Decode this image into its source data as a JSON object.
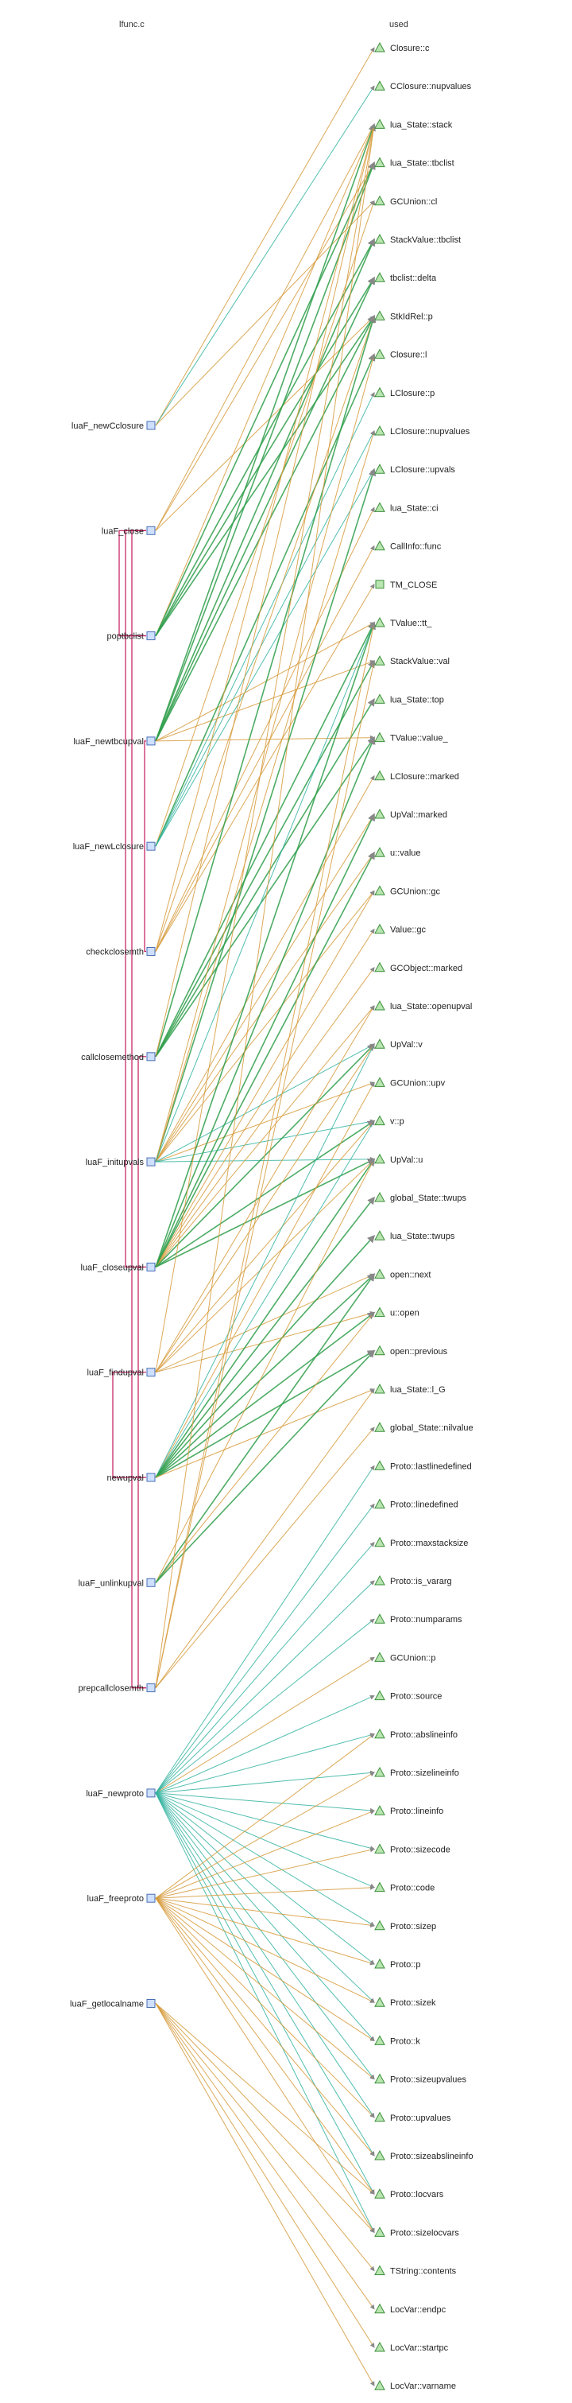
{
  "header": {
    "left_title": "lfunc.c",
    "right_title": "used"
  },
  "colors": {
    "read": "#d69a3a",
    "write": "#33b3a0",
    "readwrite": "#2e9e4a",
    "call": "#c2185b"
  },
  "functions": [
    {
      "name": "luaF_newCclosure",
      "icon": "function-box-icon"
    },
    {
      "name": "luaF_close",
      "icon": "function-box-icon"
    },
    {
      "name": "poptbclist",
      "icon": "function-box-icon"
    },
    {
      "name": "luaF_newtbcupval",
      "icon": "function-box-icon"
    },
    {
      "name": "luaF_newLclosure",
      "icon": "function-box-icon"
    },
    {
      "name": "checkclosemth",
      "icon": "function-box-icon"
    },
    {
      "name": "callclosemethod",
      "icon": "function-box-icon"
    },
    {
      "name": "luaF_initupvals",
      "icon": "function-box-icon"
    },
    {
      "name": "luaF_closeupval",
      "icon": "function-box-icon"
    },
    {
      "name": "luaF_findupval",
      "icon": "function-box-icon"
    },
    {
      "name": "newupval",
      "icon": "function-box-icon"
    },
    {
      "name": "luaF_unlinkupval",
      "icon": "function-box-icon"
    },
    {
      "name": "prepcallclosemth",
      "icon": "function-box-icon"
    },
    {
      "name": "luaF_newproto",
      "icon": "function-box-icon"
    },
    {
      "name": "luaF_freeproto",
      "icon": "function-box-icon"
    },
    {
      "name": "luaF_getlocalname",
      "icon": "function-box-icon"
    }
  ],
  "used": [
    {
      "name": "Closure::c",
      "icon": "triangle-icon"
    },
    {
      "name": "CClosure::nupvalues",
      "icon": "triangle-icon"
    },
    {
      "name": "lua_State::stack",
      "icon": "triangle-icon"
    },
    {
      "name": "lua_State::tbclist",
      "icon": "triangle-icon"
    },
    {
      "name": "GCUnion::cl",
      "icon": "triangle-icon"
    },
    {
      "name": "StackValue::tbclist",
      "icon": "triangle-icon"
    },
    {
      "name": "tbclist::delta",
      "icon": "triangle-icon"
    },
    {
      "name": "StkIdRel::p",
      "icon": "triangle-icon"
    },
    {
      "name": "Closure::l",
      "icon": "triangle-icon"
    },
    {
      "name": "LClosure::p",
      "icon": "triangle-icon"
    },
    {
      "name": "LClosure::nupvalues",
      "icon": "triangle-icon"
    },
    {
      "name": "LClosure::upvals",
      "icon": "triangle-icon"
    },
    {
      "name": "lua_State::ci",
      "icon": "triangle-icon"
    },
    {
      "name": "CallInfo::func",
      "icon": "triangle-icon"
    },
    {
      "name": "TM_CLOSE",
      "icon": "square-icon"
    },
    {
      "name": "TValue::tt_",
      "icon": "triangle-icon"
    },
    {
      "name": "StackValue::val",
      "icon": "triangle-icon"
    },
    {
      "name": "lua_State::top",
      "icon": "triangle-icon"
    },
    {
      "name": "TValue::value_",
      "icon": "triangle-icon"
    },
    {
      "name": "LClosure::marked",
      "icon": "triangle-icon"
    },
    {
      "name": "UpVal::marked",
      "icon": "triangle-icon"
    },
    {
      "name": "u::value",
      "icon": "triangle-icon"
    },
    {
      "name": "GCUnion::gc",
      "icon": "triangle-icon"
    },
    {
      "name": "Value::gc",
      "icon": "triangle-icon"
    },
    {
      "name": "GCObject::marked",
      "icon": "triangle-icon"
    },
    {
      "name": "lua_State::openupval",
      "icon": "triangle-icon"
    },
    {
      "name": "UpVal::v",
      "icon": "triangle-icon"
    },
    {
      "name": "GCUnion::upv",
      "icon": "triangle-icon"
    },
    {
      "name": "v::p",
      "icon": "triangle-icon"
    },
    {
      "name": "UpVal::u",
      "icon": "triangle-icon"
    },
    {
      "name": "global_State::twups",
      "icon": "triangle-icon"
    },
    {
      "name": "lua_State::twups",
      "icon": "triangle-icon"
    },
    {
      "name": "open::next",
      "icon": "triangle-icon"
    },
    {
      "name": "u::open",
      "icon": "triangle-icon"
    },
    {
      "name": "open::previous",
      "icon": "triangle-icon"
    },
    {
      "name": "lua_State::l_G",
      "icon": "triangle-icon"
    },
    {
      "name": "global_State::nilvalue",
      "icon": "triangle-icon"
    },
    {
      "name": "Proto::lastlinedefined",
      "icon": "triangle-icon"
    },
    {
      "name": "Proto::linedefined",
      "icon": "triangle-icon"
    },
    {
      "name": "Proto::maxstacksize",
      "icon": "triangle-icon"
    },
    {
      "name": "Proto::is_vararg",
      "icon": "triangle-icon"
    },
    {
      "name": "Proto::numparams",
      "icon": "triangle-icon"
    },
    {
      "name": "GCUnion::p",
      "icon": "triangle-icon"
    },
    {
      "name": "Proto::source",
      "icon": "triangle-icon"
    },
    {
      "name": "Proto::abslineinfo",
      "icon": "triangle-icon"
    },
    {
      "name": "Proto::sizelineinfo",
      "icon": "triangle-icon"
    },
    {
      "name": "Proto::lineinfo",
      "icon": "triangle-icon"
    },
    {
      "name": "Proto::sizecode",
      "icon": "triangle-icon"
    },
    {
      "name": "Proto::code",
      "icon": "triangle-icon"
    },
    {
      "name": "Proto::sizep",
      "icon": "triangle-icon"
    },
    {
      "name": "Proto::p",
      "icon": "triangle-icon"
    },
    {
      "name": "Proto::sizek",
      "icon": "triangle-icon"
    },
    {
      "name": "Proto::k",
      "icon": "triangle-icon"
    },
    {
      "name": "Proto::sizeupvalues",
      "icon": "triangle-icon"
    },
    {
      "name": "Proto::upvalues",
      "icon": "triangle-icon"
    },
    {
      "name": "Proto::sizeabslineinfo",
      "icon": "triangle-icon"
    },
    {
      "name": "Proto::locvars",
      "icon": "triangle-icon"
    },
    {
      "name": "Proto::sizelocvars",
      "icon": "triangle-icon"
    },
    {
      "name": "TString::contents",
      "icon": "triangle-icon"
    },
    {
      "name": "LocVar::endpc",
      "icon": "triangle-icon"
    },
    {
      "name": "LocVar::startpc",
      "icon": "triangle-icon"
    },
    {
      "name": "LocVar::varname",
      "icon": "triangle-icon"
    }
  ],
  "edges": [
    {
      "from": "luaF_newCclosure",
      "to": "Closure::c",
      "kind": "read"
    },
    {
      "from": "luaF_newCclosure",
      "to": "CClosure::nupvalues",
      "kind": "write"
    },
    {
      "from": "luaF_newCclosure",
      "to": "GCUnion::cl",
      "kind": "read"
    },
    {
      "from": "luaF_close",
      "to": "lua_State::stack",
      "kind": "read"
    },
    {
      "from": "luaF_close",
      "to": "lua_State::tbclist",
      "kind": "read"
    },
    {
      "from": "luaF_close",
      "to": "StkIdRel::p",
      "kind": "read"
    },
    {
      "from": "poptbclist",
      "to": "lua_State::stack",
      "kind": "read"
    },
    {
      "from": "poptbclist",
      "to": "lua_State::tbclist",
      "kind": "readwrite"
    },
    {
      "from": "poptbclist",
      "to": "StackValue::tbclist",
      "kind": "readwrite"
    },
    {
      "from": "poptbclist",
      "to": "tbclist::delta",
      "kind": "readwrite"
    },
    {
      "from": "poptbclist",
      "to": "StkIdRel::p",
      "kind": "readwrite"
    },
    {
      "from": "luaF_newtbcupval",
      "to": "lua_State::stack",
      "kind": "readwrite"
    },
    {
      "from": "luaF_newtbcupval",
      "to": "lua_State::tbclist",
      "kind": "readwrite"
    },
    {
      "from": "luaF_newtbcupval",
      "to": "StackValue::tbclist",
      "kind": "readwrite"
    },
    {
      "from": "luaF_newtbcupval",
      "to": "tbclist::delta",
      "kind": "readwrite"
    },
    {
      "from": "luaF_newtbcupval",
      "to": "StkIdRel::p",
      "kind": "readwrite"
    },
    {
      "from": "luaF_newtbcupval",
      "to": "TValue::tt_",
      "kind": "read"
    },
    {
      "from": "luaF_newtbcupval",
      "to": "StackValue::val",
      "kind": "read"
    },
    {
      "from": "luaF_newtbcupval",
      "to": "TValue::value_",
      "kind": "read"
    },
    {
      "from": "luaF_newLclosure",
      "to": "GCUnion::cl",
      "kind": "read"
    },
    {
      "from": "luaF_newLclosure",
      "to": "Closure::l",
      "kind": "readwrite"
    },
    {
      "from": "luaF_newLclosure",
      "to": "LClosure::p",
      "kind": "write"
    },
    {
      "from": "luaF_newLclosure",
      "to": "LClosure::nupvalues",
      "kind": "write"
    },
    {
      "from": "luaF_newLclosure",
      "to": "LClosure::upvals",
      "kind": "write"
    },
    {
      "from": "checkclosemth",
      "to": "lua_State::stack",
      "kind": "read"
    },
    {
      "from": "checkclosemth",
      "to": "lua_State::ci",
      "kind": "read"
    },
    {
      "from": "checkclosemth",
      "to": "CallInfo::func",
      "kind": "read"
    },
    {
      "from": "checkclosemth",
      "to": "TM_CLOSE",
      "kind": "read"
    },
    {
      "from": "checkclosemth",
      "to": "StkIdRel::p",
      "kind": "read"
    },
    {
      "from": "callclosemethod",
      "to": "StkIdRel::p",
      "kind": "readwrite"
    },
    {
      "from": "callclosemethod",
      "to": "TValue::tt_",
      "kind": "readwrite"
    },
    {
      "from": "callclosemethod",
      "to": "StackValue::val",
      "kind": "readwrite"
    },
    {
      "from": "callclosemethod",
      "to": "lua_State::top",
      "kind": "readwrite"
    },
    {
      "from": "callclosemethod",
      "to": "TValue::value_",
      "kind": "readwrite"
    },
    {
      "from": "callclosemethod",
      "to": "lua_State::stack",
      "kind": "read"
    },
    {
      "from": "luaF_initupvals",
      "to": "Closure::l",
      "kind": "read"
    },
    {
      "from": "luaF_initupvals",
      "to": "LClosure::upvals",
      "kind": "readwrite"
    },
    {
      "from": "luaF_initupvals",
      "to": "LClosure::nupvalues",
      "kind": "read"
    },
    {
      "from": "luaF_initupvals",
      "to": "LClosure::marked",
      "kind": "read"
    },
    {
      "from": "luaF_initupvals",
      "to": "UpVal::marked",
      "kind": "read"
    },
    {
      "from": "luaF_initupvals",
      "to": "u::value",
      "kind": "read"
    },
    {
      "from": "luaF_initupvals",
      "to": "GCUnion::upv",
      "kind": "read"
    },
    {
      "from": "luaF_initupvals",
      "to": "UpVal::v",
      "kind": "write"
    },
    {
      "from": "luaF_initupvals",
      "to": "v::p",
      "kind": "write"
    },
    {
      "from": "luaF_initupvals",
      "to": "UpVal::u",
      "kind": "write"
    },
    {
      "from": "luaF_initupvals",
      "to": "GCUnion::gc",
      "kind": "read"
    },
    {
      "from": "luaF_initupvals",
      "to": "TValue::tt_",
      "kind": "write"
    },
    {
      "from": "luaF_closeupval",
      "to": "lua_State::openupval",
      "kind": "read"
    },
    {
      "from": "luaF_closeupval",
      "to": "UpVal::v",
      "kind": "readwrite"
    },
    {
      "from": "luaF_closeupval",
      "to": "v::p",
      "kind": "readwrite"
    },
    {
      "from": "luaF_closeupval",
      "to": "UpVal::u",
      "kind": "readwrite"
    },
    {
      "from": "luaF_closeupval",
      "to": "u::value",
      "kind": "readwrite"
    },
    {
      "from": "luaF_closeupval",
      "to": "TValue::tt_",
      "kind": "readwrite"
    },
    {
      "from": "luaF_closeupval",
      "to": "TValue::value_",
      "kind": "readwrite"
    },
    {
      "from": "luaF_closeupval",
      "to": "GCUnion::gc",
      "kind": "read"
    },
    {
      "from": "luaF_closeupval",
      "to": "Value::gc",
      "kind": "read"
    },
    {
      "from": "luaF_closeupval",
      "to": "GCObject::marked",
      "kind": "read"
    },
    {
      "from": "luaF_closeupval",
      "to": "UpVal::marked",
      "kind": "readwrite"
    },
    {
      "from": "luaF_findupval",
      "to": "lua_State::openupval",
      "kind": "read"
    },
    {
      "from": "luaF_findupval",
      "to": "UpVal::v",
      "kind": "read"
    },
    {
      "from": "luaF_findupval",
      "to": "v::p",
      "kind": "read"
    },
    {
      "from": "luaF_findupval",
      "to": "UpVal::u",
      "kind": "read"
    },
    {
      "from": "luaF_findupval",
      "to": "open::next",
      "kind": "read"
    },
    {
      "from": "luaF_findupval",
      "to": "u::open",
      "kind": "read"
    },
    {
      "from": "luaF_findupval",
      "to": "lua_State::stack",
      "kind": "read"
    },
    {
      "from": "newupval",
      "to": "GCUnion::upv",
      "kind": "read"
    },
    {
      "from": "newupval",
      "to": "UpVal::v",
      "kind": "write"
    },
    {
      "from": "newupval",
      "to": "v::p",
      "kind": "write"
    },
    {
      "from": "newupval",
      "to": "UpVal::u",
      "kind": "readwrite"
    },
    {
      "from": "newupval",
      "to": "open::next",
      "kind": "readwrite"
    },
    {
      "from": "newupval",
      "to": "u::open",
      "kind": "readwrite"
    },
    {
      "from": "newupval",
      "to": "open::previous",
      "kind": "readwrite"
    },
    {
      "from": "newupval",
      "to": "global_State::twups",
      "kind": "readwrite"
    },
    {
      "from": "newupval",
      "to": "lua_State::twups",
      "kind": "readwrite"
    },
    {
      "from": "newupval",
      "to": "lua_State::l_G",
      "kind": "read"
    },
    {
      "from": "luaF_unlinkupval",
      "to": "UpVal::u",
      "kind": "read"
    },
    {
      "from": "luaF_unlinkupval",
      "to": "u::open",
      "kind": "read"
    },
    {
      "from": "luaF_unlinkupval",
      "to": "open::next",
      "kind": "readwrite"
    },
    {
      "from": "luaF_unlinkupval",
      "to": "open::previous",
      "kind": "readwrite"
    },
    {
      "from": "prepcallclosemth",
      "to": "lua_State::l_G",
      "kind": "read"
    },
    {
      "from": "prepcallclosemth",
      "to": "global_State::nilvalue",
      "kind": "read"
    },
    {
      "from": "prepcallclosemth",
      "to": "TValue::tt_",
      "kind": "read"
    },
    {
      "from": "prepcallclosemth",
      "to": "StackValue::val",
      "kind": "read"
    },
    {
      "from": "prepcallclosemth",
      "to": "lua_State::stack",
      "kind": "read"
    },
    {
      "from": "luaF_newproto",
      "to": "GCUnion::p",
      "kind": "read"
    },
    {
      "from": "luaF_newproto",
      "to": "Proto::lastlinedefined",
      "kind": "write"
    },
    {
      "from": "luaF_newproto",
      "to": "Proto::linedefined",
      "kind": "write"
    },
    {
      "from": "luaF_newproto",
      "to": "Proto::maxstacksize",
      "kind": "write"
    },
    {
      "from": "luaF_newproto",
      "to": "Proto::is_vararg",
      "kind": "write"
    },
    {
      "from": "luaF_newproto",
      "to": "Proto::numparams",
      "kind": "write"
    },
    {
      "from": "luaF_newproto",
      "to": "Proto::source",
      "kind": "write"
    },
    {
      "from": "luaF_newproto",
      "to": "Proto::abslineinfo",
      "kind": "write"
    },
    {
      "from": "luaF_newproto",
      "to": "Proto::sizelineinfo",
      "kind": "write"
    },
    {
      "from": "luaF_newproto",
      "to": "Proto::lineinfo",
      "kind": "write"
    },
    {
      "from": "luaF_newproto",
      "to": "Proto::sizecode",
      "kind": "write"
    },
    {
      "from": "luaF_newproto",
      "to": "Proto::code",
      "kind": "write"
    },
    {
      "from": "luaF_newproto",
      "to": "Proto::sizep",
      "kind": "write"
    },
    {
      "from": "luaF_newproto",
      "to": "Proto::p",
      "kind": "write"
    },
    {
      "from": "luaF_newproto",
      "to": "Proto::sizek",
      "kind": "write"
    },
    {
      "from": "luaF_newproto",
      "to": "Proto::k",
      "kind": "write"
    },
    {
      "from": "luaF_newproto",
      "to": "Proto::sizeupvalues",
      "kind": "write"
    },
    {
      "from": "luaF_newproto",
      "to": "Proto::upvalues",
      "kind": "write"
    },
    {
      "from": "luaF_newproto",
      "to": "Proto::sizeabslineinfo",
      "kind": "write"
    },
    {
      "from": "luaF_newproto",
      "to": "Proto::locvars",
      "kind": "write"
    },
    {
      "from": "luaF_newproto",
      "to": "Proto::sizelocvars",
      "kind": "write"
    },
    {
      "from": "luaF_freeproto",
      "to": "Proto::code",
      "kind": "read"
    },
    {
      "from": "luaF_freeproto",
      "to": "Proto::sizecode",
      "kind": "read"
    },
    {
      "from": "luaF_freeproto",
      "to": "Proto::p",
      "kind": "read"
    },
    {
      "from": "luaF_freeproto",
      "to": "Proto::sizep",
      "kind": "read"
    },
    {
      "from": "luaF_freeproto",
      "to": "Proto::k",
      "kind": "read"
    },
    {
      "from": "luaF_freeproto",
      "to": "Proto::sizek",
      "kind": "read"
    },
    {
      "from": "luaF_freeproto",
      "to": "Proto::lineinfo",
      "kind": "read"
    },
    {
      "from": "luaF_freeproto",
      "to": "Proto::sizelineinfo",
      "kind": "read"
    },
    {
      "from": "luaF_freeproto",
      "to": "Proto::abslineinfo",
      "kind": "read"
    },
    {
      "from": "luaF_freeproto",
      "to": "Proto::sizeabslineinfo",
      "kind": "read"
    },
    {
      "from": "luaF_freeproto",
      "to": "Proto::locvars",
      "kind": "read"
    },
    {
      "from": "luaF_freeproto",
      "to": "Proto::sizelocvars",
      "kind": "read"
    },
    {
      "from": "luaF_freeproto",
      "to": "Proto::upvalues",
      "kind": "read"
    },
    {
      "from": "luaF_freeproto",
      "to": "Proto::sizeupvalues",
      "kind": "read"
    },
    {
      "from": "luaF_getlocalname",
      "to": "Proto::sizelocvars",
      "kind": "read"
    },
    {
      "from": "luaF_getlocalname",
      "to": "Proto::locvars",
      "kind": "read"
    },
    {
      "from": "luaF_getlocalname",
      "to": "LocVar::startpc",
      "kind": "read"
    },
    {
      "from": "luaF_getlocalname",
      "to": "LocVar::endpc",
      "kind": "read"
    },
    {
      "from": "luaF_getlocalname",
      "to": "LocVar::varname",
      "kind": "read"
    },
    {
      "from": "luaF_getlocalname",
      "to": "TString::contents",
      "kind": "read"
    }
  ],
  "calls": [
    {
      "from": "luaF_close",
      "to": "poptbclist"
    },
    {
      "from": "luaF_close",
      "to": "luaF_closeupval"
    },
    {
      "from": "luaF_close",
      "to": "prepcallclosemth"
    },
    {
      "from": "prepcallclosemth",
      "to": "callclosemethod"
    },
    {
      "from": "luaF_newtbcupval",
      "to": "checkclosemth"
    },
    {
      "from": "luaF_findupval",
      "to": "newupval"
    }
  ]
}
